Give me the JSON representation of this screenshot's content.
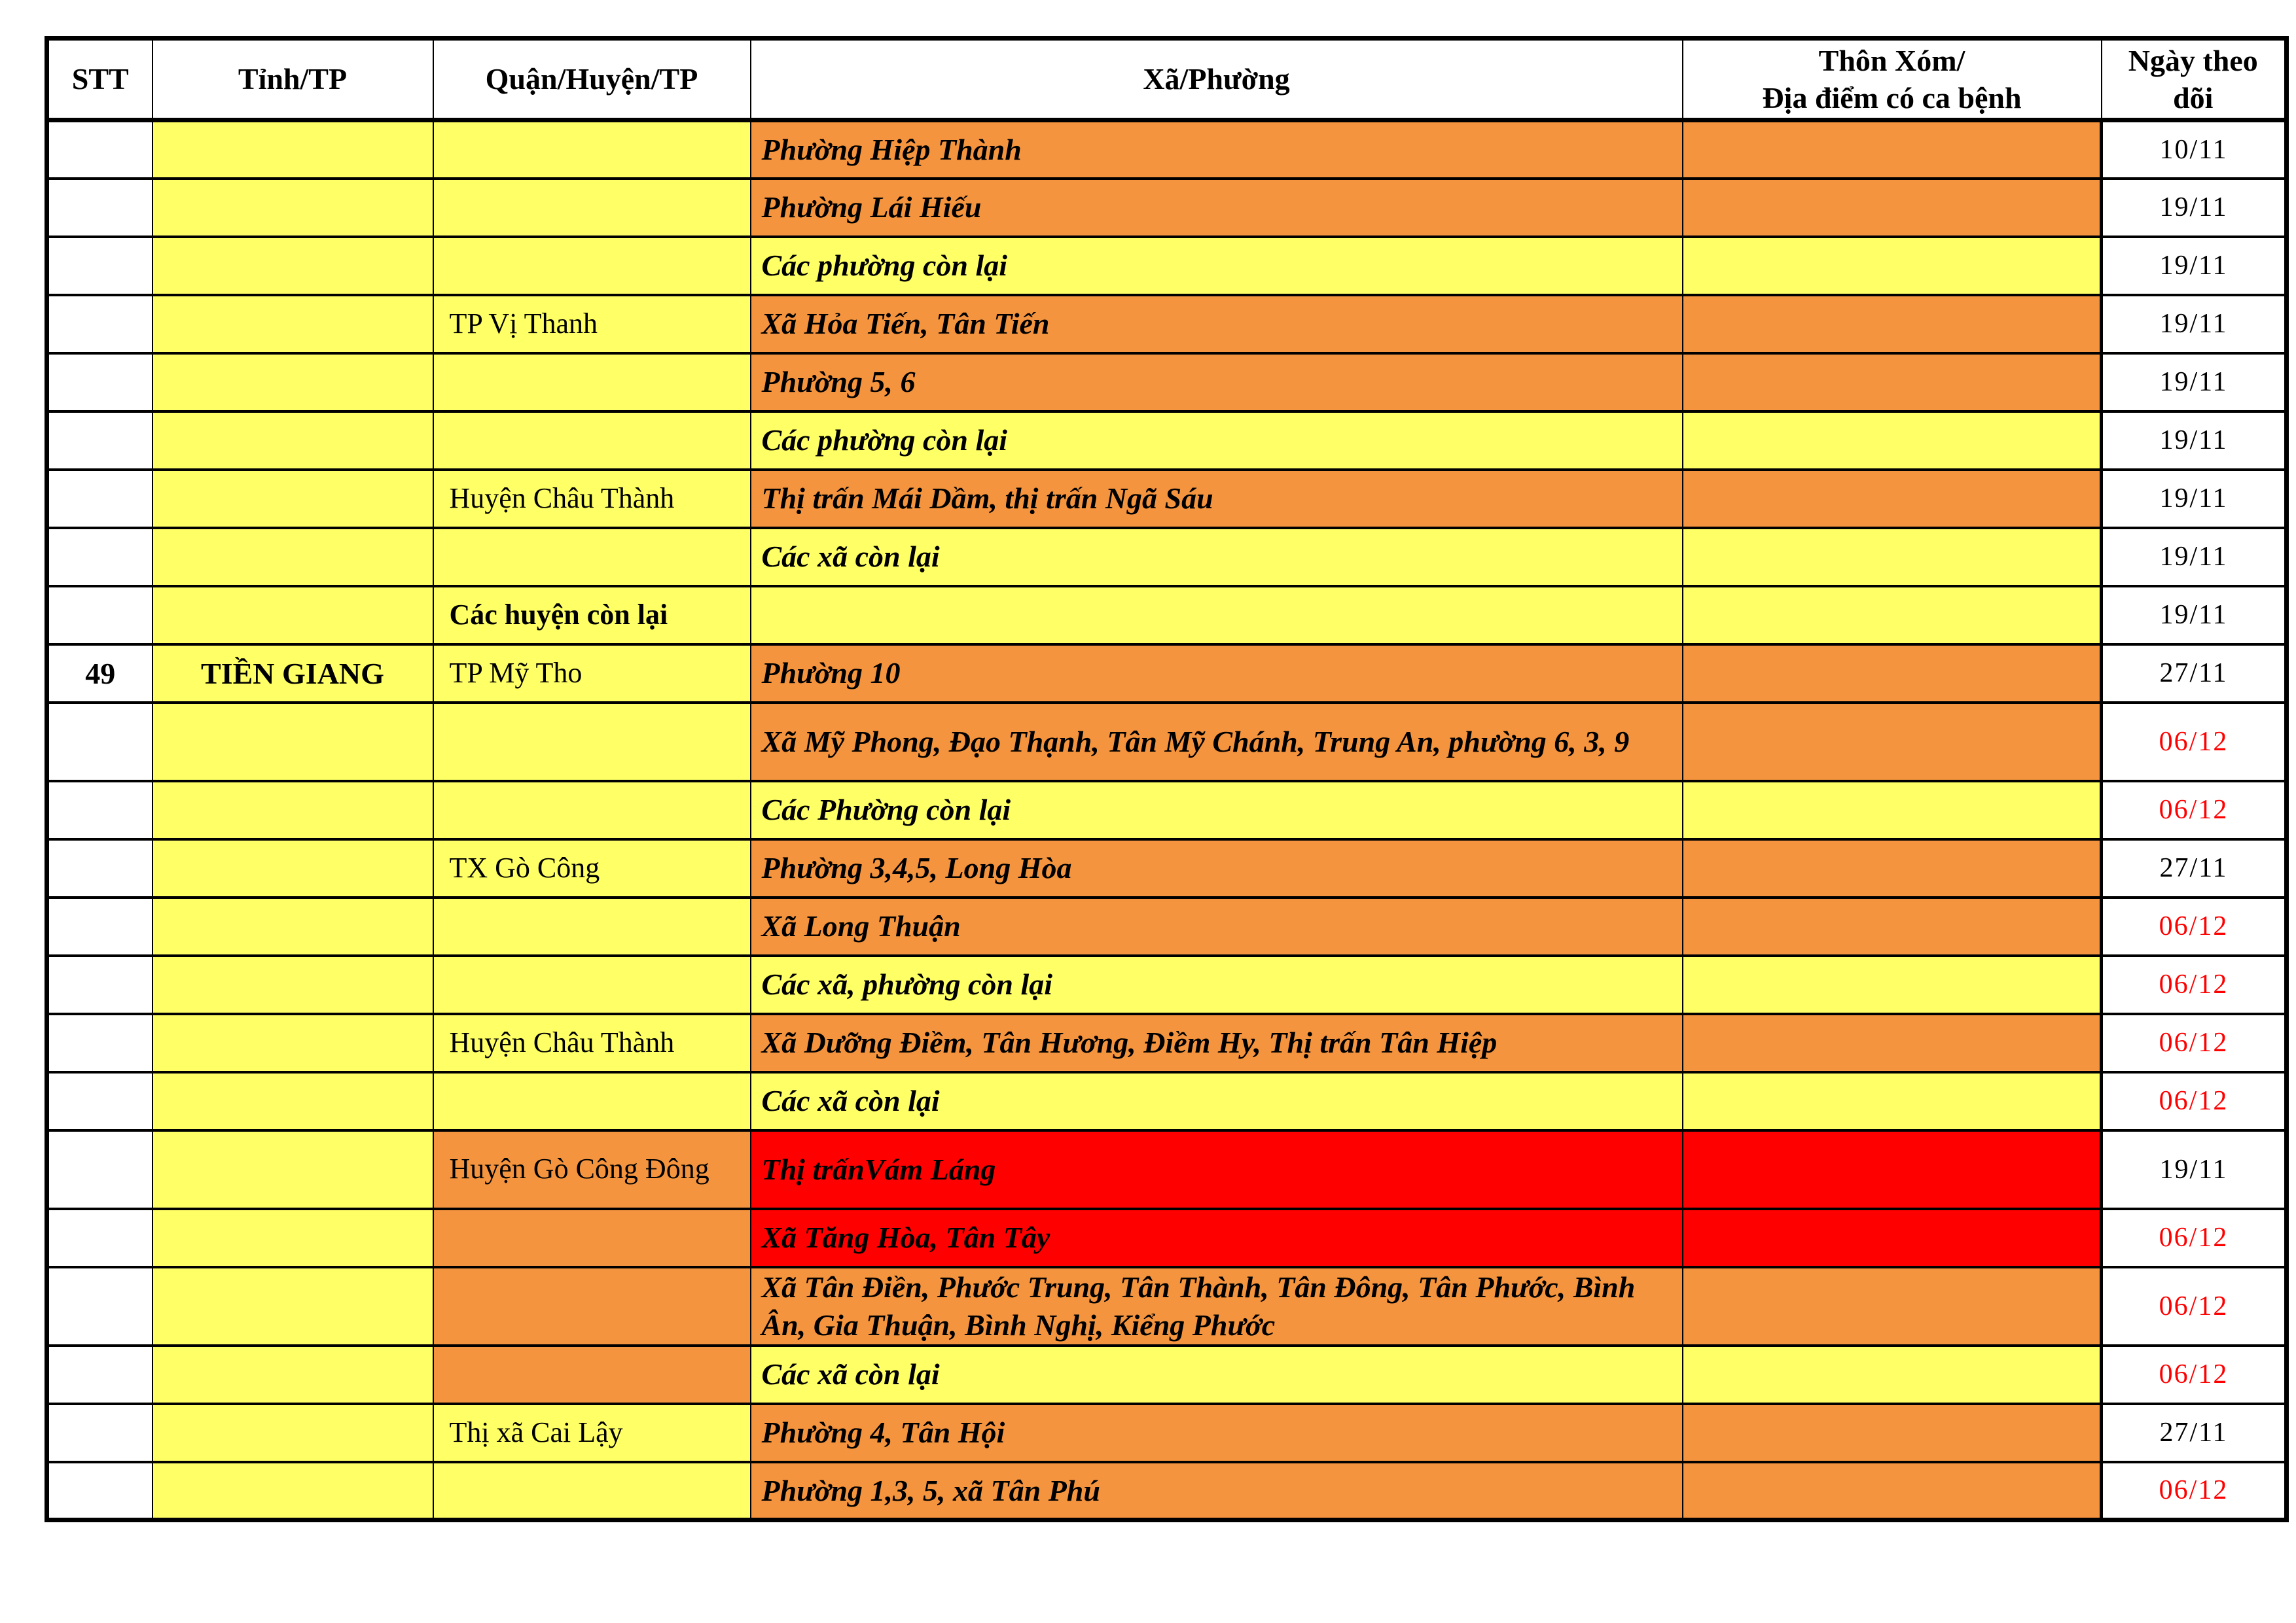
{
  "colors": {
    "yellow": "#FFFF66",
    "orange": "#F5943E",
    "red": "#FE0000",
    "white": "#FFFFFF",
    "date_red": "#FF0000",
    "border": "#000000",
    "text": "#000000"
  },
  "header": {
    "stt": "STT",
    "tinh": "Tỉnh/TP",
    "quan": "Quận/Huyện/TP",
    "xa": "Xã/Phường",
    "thon": "Thôn Xóm/\nĐịa điểm có ca bệnh",
    "ngay": "Ngày theo\ndõi"
  },
  "rows": [
    {
      "stt": "",
      "tinh": "",
      "quan": "",
      "xa": "Phường Hiệp Thành",
      "thon": "",
      "ngay": "10/11",
      "quan_bg": "Y",
      "xa_bg": "O",
      "quan_bold": false,
      "ngay_red": false,
      "tall": false
    },
    {
      "stt": "",
      "tinh": "",
      "quan": "",
      "xa": "Phường Lái Hiếu",
      "thon": "",
      "ngay": "19/11",
      "quan_bg": "Y",
      "xa_bg": "O",
      "quan_bold": false,
      "ngay_red": false,
      "tall": false
    },
    {
      "stt": "",
      "tinh": "",
      "quan": "",
      "xa": "Các phường còn lại",
      "thon": "",
      "ngay": "19/11",
      "quan_bg": "Y",
      "xa_bg": "Y",
      "quan_bold": false,
      "ngay_red": false,
      "tall": false
    },
    {
      "stt": "",
      "tinh": "",
      "quan": "TP Vị Thanh",
      "xa": "Xã Hỏa Tiến, Tân Tiến",
      "thon": "",
      "ngay": "19/11",
      "quan_bg": "Y",
      "xa_bg": "O",
      "quan_bold": false,
      "ngay_red": false,
      "tall": false
    },
    {
      "stt": "",
      "tinh": "",
      "quan": "",
      "xa": "Phường 5, 6",
      "thon": "",
      "ngay": "19/11",
      "quan_bg": "Y",
      "xa_bg": "O",
      "quan_bold": false,
      "ngay_red": false,
      "tall": false
    },
    {
      "stt": "",
      "tinh": "",
      "quan": "",
      "xa": "Các phường còn lại",
      "thon": "",
      "ngay": "19/11",
      "quan_bg": "Y",
      "xa_bg": "Y",
      "quan_bold": false,
      "ngay_red": false,
      "tall": false
    },
    {
      "stt": "",
      "tinh": "",
      "quan": "Huyện Châu Thành",
      "xa": "Thị trấn Mái Dầm, thị trấn Ngã Sáu",
      "thon": "",
      "ngay": "19/11",
      "quan_bg": "Y",
      "xa_bg": "O",
      "quan_bold": false,
      "ngay_red": false,
      "tall": false
    },
    {
      "stt": "",
      "tinh": "",
      "quan": "",
      "xa": "Các xã còn lại",
      "thon": "",
      "ngay": "19/11",
      "quan_bg": "Y",
      "xa_bg": "Y",
      "quan_bold": false,
      "ngay_red": false,
      "tall": false
    },
    {
      "stt": "",
      "tinh": "",
      "quan": "Các huyện còn lại",
      "xa": "",
      "thon": "",
      "ngay": "19/11",
      "quan_bg": "Y",
      "xa_bg": "Y",
      "quan_bold": true,
      "ngay_red": false,
      "tall": false
    },
    {
      "stt": "49",
      "tinh": "TIỀN GIANG",
      "quan": "TP Mỹ Tho",
      "xa": "Phường 10",
      "thon": "",
      "ngay": "27/11",
      "quan_bg": "Y",
      "xa_bg": "O",
      "quan_bold": false,
      "ngay_red": false,
      "tall": false
    },
    {
      "stt": "",
      "tinh": "",
      "quan": "",
      "xa": "Xã Mỹ Phong, Đạo Thạnh, Tân Mỹ Chánh, Trung An, phường 6, 3, 9",
      "thon": "",
      "ngay": "06/12",
      "quan_bg": "Y",
      "xa_bg": "O",
      "quan_bold": false,
      "ngay_red": true,
      "tall": true
    },
    {
      "stt": "",
      "tinh": "",
      "quan": "",
      "xa": "Các Phường còn lại",
      "thon": "",
      "ngay": "06/12",
      "quan_bg": "Y",
      "xa_bg": "Y",
      "quan_bold": false,
      "ngay_red": true,
      "tall": false
    },
    {
      "stt": "",
      "tinh": "",
      "quan": "TX Gò Công",
      "xa": "Phường 3,4,5, Long Hòa",
      "thon": "",
      "ngay": "27/11",
      "quan_bg": "Y",
      "xa_bg": "O",
      "quan_bold": false,
      "ngay_red": false,
      "tall": false
    },
    {
      "stt": "",
      "tinh": "",
      "quan": "",
      "xa": "Xã Long Thuận",
      "thon": "",
      "ngay": "06/12",
      "quan_bg": "Y",
      "xa_bg": "O",
      "quan_bold": false,
      "ngay_red": true,
      "tall": false
    },
    {
      "stt": "",
      "tinh": "",
      "quan": "",
      "xa": "Các xã, phường còn lại",
      "thon": "",
      "ngay": "06/12",
      "quan_bg": "Y",
      "xa_bg": "Y",
      "quan_bold": false,
      "ngay_red": true,
      "tall": false
    },
    {
      "stt": "",
      "tinh": "",
      "quan": "Huyện Châu Thành",
      "xa": "Xã Dưỡng Điềm, Tân Hương, Điềm Hy, Thị trấn Tân Hiệp",
      "thon": "",
      "ngay": "06/12",
      "quan_bg": "Y",
      "xa_bg": "O",
      "quan_bold": false,
      "ngay_red": true,
      "tall": false
    },
    {
      "stt": "",
      "tinh": "",
      "quan": "",
      "xa": "Các xã còn lại",
      "thon": "",
      "ngay": "06/12",
      "quan_bg": "Y",
      "xa_bg": "Y",
      "quan_bold": false,
      "ngay_red": true,
      "tall": false
    },
    {
      "stt": "",
      "tinh": "",
      "quan": "Huyện Gò Công Đông",
      "xa": "Thị trấnVám Láng",
      "thon": "",
      "ngay": "19/11",
      "quan_bg": "O",
      "xa_bg": "R",
      "quan_bold": false,
      "ngay_red": false,
      "tall": true
    },
    {
      "stt": "",
      "tinh": "",
      "quan": "",
      "xa": "Xã Tăng Hòa, Tân Tây",
      "thon": "",
      "ngay": "06/12",
      "quan_bg": "O",
      "xa_bg": "R",
      "quan_bold": false,
      "ngay_red": true,
      "tall": false
    },
    {
      "stt": "",
      "tinh": "",
      "quan": "",
      "xa": "Xã Tân Điền, Phước Trung, Tân Thành, Tân Đông, Tân Phước, Bình Ân, Gia Thuận, Bình Nghị, Kiểng Phước",
      "thon": "",
      "ngay": "06/12",
      "quan_bg": "O",
      "xa_bg": "O",
      "quan_bold": false,
      "ngay_red": true,
      "tall": true
    },
    {
      "stt": "",
      "tinh": "",
      "quan": "",
      "xa": "Các xã còn lại",
      "thon": "",
      "ngay": "06/12",
      "quan_bg": "O",
      "xa_bg": "Y",
      "quan_bold": false,
      "ngay_red": true,
      "tall": false
    },
    {
      "stt": "",
      "tinh": "",
      "quan": "Thị xã Cai Lậy",
      "xa": "Phường 4, Tân Hội",
      "thon": "",
      "ngay": "27/11",
      "quan_bg": "Y",
      "xa_bg": "O",
      "quan_bold": false,
      "ngay_red": false,
      "tall": false
    },
    {
      "stt": "",
      "tinh": "",
      "quan": "",
      "xa": "Phường 1,3, 5, xã Tân Phú",
      "thon": "",
      "ngay": "06/12",
      "quan_bg": "Y",
      "xa_bg": "O",
      "quan_bold": false,
      "ngay_red": true,
      "tall": false
    }
  ]
}
